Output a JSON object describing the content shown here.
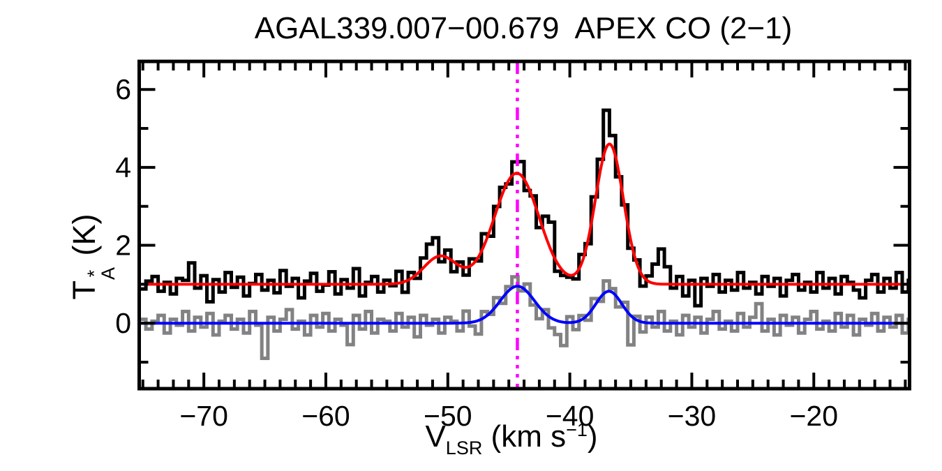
{
  "labels": {
    "title": "AGAL339.007−00.679  APEX CO (2−1)",
    "y_axis": {
      "main": "T",
      "sup": "*",
      "sub": "A",
      "unit": " (K)"
    },
    "x_axis": {
      "main": "V",
      "sub": "LSR",
      "mid": " (km s",
      "sup": "−1",
      "end": ")"
    }
  },
  "colors": {
    "background": "#FFFFFF",
    "frame": "#000000",
    "observed_offset_spectrum": "#000000",
    "second_spectrum": "#828282",
    "fit_offset": "#FF0000",
    "fit_second": "#0000FF",
    "velocity_marker": "#FF00FF"
  },
  "chart_data": {
    "type": "line",
    "subtype": "spectrum-histogram-with-gaussian-fits",
    "title": "AGAL339.007−00.679  APEX CO (2−1)",
    "xlabel": "V_LSR (km s−1)",
    "ylabel": "T*_A (K)",
    "xlim": [
      -75.3,
      -12.15
    ],
    "ylim": [
      -1.68,
      6.72
    ],
    "grid": false,
    "legend": "none",
    "x_ticks": {
      "values": [
        -70,
        -60,
        -50,
        -40,
        -30,
        -20
      ],
      "labels": [
        "−70",
        "−60",
        "−50",
        "−40",
        "−30",
        "−20"
      ],
      "minor_step": 1.25
    },
    "y_ticks": {
      "values": [
        0,
        2,
        4,
        6
      ],
      "labels": [
        "0",
        "2",
        "4",
        "6"
      ],
      "minor_step": 1
    },
    "channel_start": -75.0,
    "channel_step": 0.5,
    "vline": {
      "x": -44.3,
      "color": "#FF00FF",
      "style": "dash-dot-dot-dot"
    },
    "series": [
      {
        "name": "co-spectrum-lower",
        "style": "histogram",
        "color": "#828282",
        "stroke_width": 5,
        "baseline": 0.0,
        "components": [
          {
            "center": -44.3,
            "amp": 0.95,
            "fwhm": 3.3
          },
          {
            "center": -36.8,
            "amp": 0.82,
            "fwhm": 2.5
          }
        ],
        "noise": [
          0.1,
          -0.15,
          0.05,
          0.2,
          -0.25,
          0.1,
          -0.05,
          0.3,
          -0.2,
          0.15,
          -0.1,
          0.25,
          -0.3,
          0.05,
          0.2,
          -0.15,
          0.1,
          -0.25,
          0.3,
          -0.05,
          -0.9,
          0.15,
          -0.2,
          0.1,
          0.35,
          -0.15,
          0.05,
          -0.3,
          0.2,
          -0.1,
          0.25,
          -0.2,
          0.1,
          -0.05,
          -0.55,
          0.2,
          -0.15,
          0.3,
          -0.25,
          0.1,
          0.05,
          -0.2,
          0.25,
          -0.1,
          0.15,
          -0.35,
          0.2,
          -0.05,
          0.1,
          -0.25,
          0.15,
          0.05,
          -0.2,
          0.3,
          -0.1,
          -0.35,
          0.15,
          -0.05,
          0.2,
          -0.15,
          0.1,
          0.25,
          -0.1,
          0.2,
          -0.15,
          -0.3,
          0.1,
          -0.25,
          -0.35,
          -0.6,
          0.15,
          -0.2,
          0.1,
          -0.15,
          0.2,
          -0.1,
          0.28,
          0.1,
          -0.2,
          0.15,
          -0.75,
          0.1,
          -0.25,
          0.15,
          -0.1,
          0.3,
          -0.2,
          0.05,
          -0.3,
          0.2,
          -0.1,
          0.15,
          -0.25,
          0.1,
          0.3,
          -0.15,
          0.05,
          -0.2,
          0.25,
          -0.1,
          0.15,
          0.5,
          -0.2,
          0.1,
          -0.3,
          0.2,
          -0.05,
          0.15,
          -0.25,
          0.1,
          0.3,
          -0.15,
          0.05,
          -0.2,
          0.25,
          -0.1,
          0.2,
          -0.3,
          0.1,
          -0.05,
          0.25,
          -0.2,
          0.15,
          -0.1,
          0.2,
          -0.25,
          0.1
        ]
      },
      {
        "name": "co-spectrum-offset-upper",
        "style": "histogram",
        "color": "#000000",
        "stroke_width": 5,
        "baseline": 1.0,
        "components": [
          {
            "center": -50.6,
            "amp": 0.72,
            "fwhm": 3.2
          },
          {
            "center": -44.35,
            "amp": 2.85,
            "fwhm": 4.3
          },
          {
            "center": -36.75,
            "amp": 3.6,
            "fwhm": 2.7
          }
        ],
        "noise": [
          -0.12,
          0.08,
          0.2,
          -0.18,
          0.05,
          -0.25,
          0.15,
          0.1,
          0.55,
          -0.1,
          0.22,
          -0.45,
          0.12,
          -0.2,
          0.3,
          -0.08,
          0.18,
          -0.3,
          0.02,
          0.25,
          -0.15,
          0.1,
          -0.22,
          0.35,
          -0.05,
          0.15,
          -0.35,
          0.08,
          0.28,
          -0.18,
          -0.02,
          0.32,
          -0.25,
          0.12,
          -0.1,
          0.4,
          -0.3,
          0.05,
          0.2,
          -0.2,
          0.1,
          -0.05,
          0.3,
          -0.28,
          0.15,
          -0.12,
          0.25,
          0.45,
          0.5,
          -0.15,
          0.2,
          -0.25,
          0.1,
          -0.2,
          0.15,
          -0.1,
          0.28,
          -0.2,
          0.1,
          0.15,
          -0.1,
          0.3,
          0.35,
          -0.15,
          0.1,
          -0.25,
          0.5,
          0.75,
          -0.2,
          -0.1,
          -0.05,
          -0.15,
          0.2,
          -0.1,
          0.25,
          0.3,
          0.95,
          0.3,
          -0.15,
          0.05,
          -0.2,
          0.1,
          -0.25,
          0.15,
          0.5,
          0.9,
          0.45,
          -0.1,
          0.2,
          -0.3,
          0.1,
          -0.55,
          0.15,
          -0.05,
          0.25,
          -0.2,
          0.1,
          -0.15,
          0.3,
          -0.1,
          0.05,
          -0.25,
          0.2,
          -0.05,
          0.15,
          -0.3,
          0.1,
          0.25,
          -0.15,
          0.05,
          -0.2,
          0.3,
          -0.1,
          0.15,
          -0.25,
          0.2,
          0.05,
          -0.15,
          -0.35,
          0.1,
          0.25,
          -0.2,
          0.15,
          -0.1,
          0.3,
          -0.2,
          0.1
        ]
      },
      {
        "name": "gaussian-fit-lower",
        "style": "smooth",
        "color": "#0000FF",
        "stroke_width": 4,
        "baseline": 0.0,
        "components": [
          {
            "center": -44.3,
            "amp": 0.95,
            "fwhm": 3.3
          },
          {
            "center": -36.8,
            "amp": 0.82,
            "fwhm": 2.5
          }
        ]
      },
      {
        "name": "gaussian-fit-offset-upper",
        "style": "smooth",
        "color": "#FF0000",
        "stroke_width": 4,
        "baseline": 1.0,
        "components": [
          {
            "center": -50.6,
            "amp": 0.72,
            "fwhm": 3.2
          },
          {
            "center": -44.35,
            "amp": 2.85,
            "fwhm": 4.3
          },
          {
            "center": -36.75,
            "amp": 3.6,
            "fwhm": 2.7
          }
        ]
      }
    ]
  }
}
